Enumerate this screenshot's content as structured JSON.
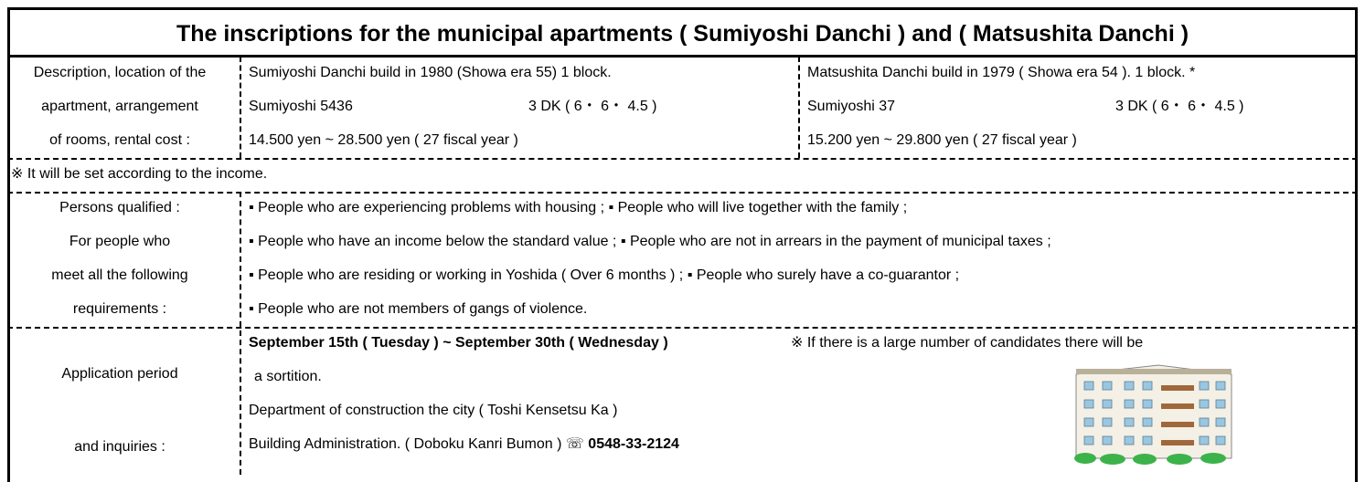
{
  "title": "The inscriptions for the municipal apartments ( Sumiyoshi Danchi ) and ( Matsushita Danchi )",
  "rental": {
    "label": [
      "Description, location of the",
      "apartment, arrangement",
      "of rooms, rental cost :"
    ],
    "sumiyoshi": {
      "info": "Sumiyoshi Danchi build in 1980 (Showa era 55) 1 block.",
      "address": "Sumiyoshi 5436",
      "rooms": "3 DK ( 6・ 6・ 4.5 )",
      "rent": "14.500 yen ~ 28.500 yen ( 27 fiscal year )"
    },
    "matsushita": {
      "info": "Matsushita Danchi build in 1979 ( Showa era 54 ). 1 block. *",
      "address": "Sumiyoshi 37",
      "rooms": "3 DK ( 6・ 6・ 4.5 )",
      "rent": "15.200 yen ~ 29.800 yen ( 27 fiscal year )"
    }
  },
  "note": "※ It will be set according to the income.",
  "qualified": {
    "label": [
      "Persons qualified :",
      "For people who",
      "meet all the following",
      "requirements :"
    ],
    "items": [
      "▪ People who are experiencing problems with housing ; ▪ People who will live together with the family ;",
      "▪ People who have an income below the standard value ; ▪ People who are not in arrears in the payment of municipal taxes ;",
      "▪ People who are residing or working in Yoshida ( Over 6 months ) ; ▪ People who surely have a co-guarantor ;",
      "▪ People who are not members of gangs of violence."
    ]
  },
  "application": {
    "label": [
      "Application period",
      "and inquiries :"
    ],
    "period": "September 15th ( Tuesday ) ~ September 30th ( Wednesday )",
    "note": "※ If there is a large number of candidates there will be",
    "sortition": "a sortition.",
    "department": "Department of construction the city ( Toshi Kensetsu Ka )",
    "building": "Building Administration. ( Doboku Kanri Bumon ) ☏",
    "phone": "0548-33-2124"
  }
}
